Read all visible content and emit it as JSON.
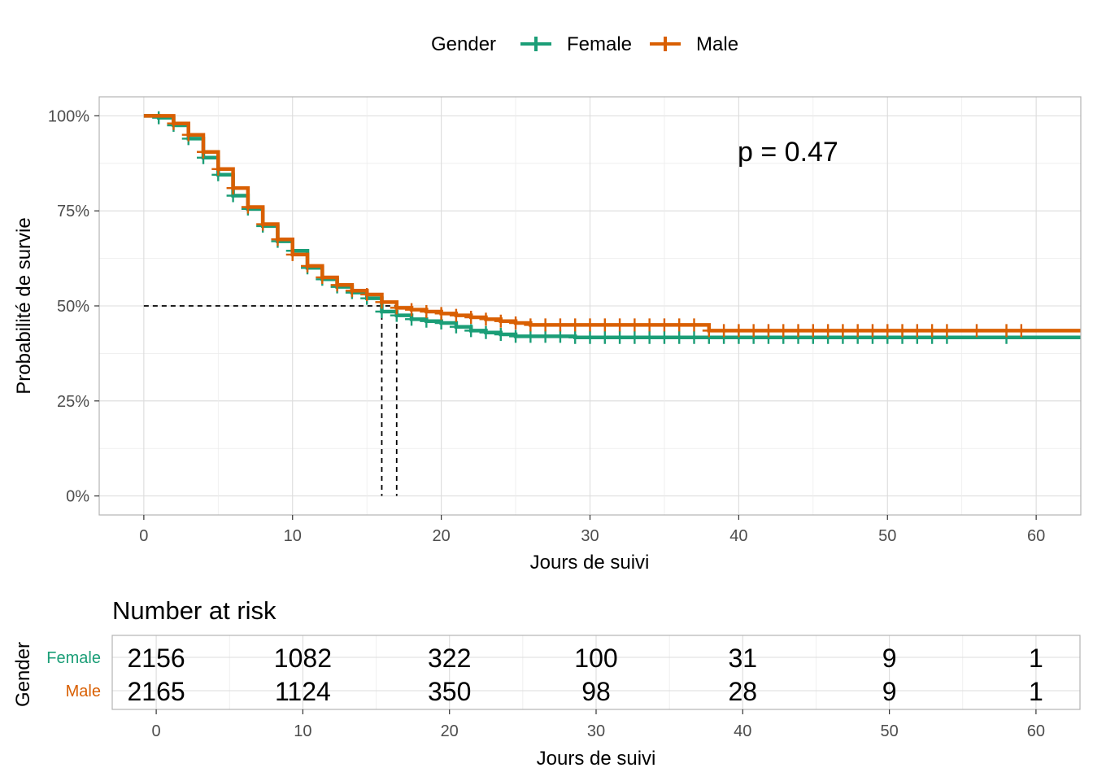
{
  "chart_data": [
    {
      "type": "line",
      "subtype": "kaplan-meier",
      "title": "",
      "xlabel": "Jours de suivi",
      "ylabel": "Probabilité de survie",
      "xlim": [
        -3,
        63
      ],
      "ylim": [
        -5,
        105
      ],
      "x_ticks": [
        0,
        10,
        20,
        30,
        40,
        50,
        60
      ],
      "x_tick_labels": [
        "0",
        "10",
        "20",
        "30",
        "40",
        "50",
        "60"
      ],
      "y_ticks": [
        0,
        25,
        50,
        75,
        100
      ],
      "y_tick_labels": [
        "0%",
        "25%",
        "50%",
        "75%",
        "100%"
      ],
      "grid": true,
      "legend": {
        "title": "Gender",
        "position": "top",
        "entries": [
          "Female",
          "Male"
        ]
      },
      "annotation": "p = 0.47",
      "median_survival": {
        "level": 50,
        "female_x": 16,
        "male_x": 17
      },
      "series": [
        {
          "name": "Female",
          "color": "#1b9e77",
          "x": [
            0,
            1,
            2,
            3,
            4,
            5,
            6,
            7,
            8,
            9,
            10,
            11,
            12,
            13,
            14,
            15,
            16,
            17,
            18,
            19,
            20,
            21,
            22,
            23,
            24,
            25,
            26,
            29,
            38,
            63
          ],
          "y": [
            100,
            99.5,
            97.5,
            94,
            89,
            84.5,
            79,
            75.5,
            71,
            67,
            64.5,
            60,
            57,
            55,
            53.5,
            52,
            48.5,
            47.5,
            46.5,
            46,
            45.5,
            44.5,
            43.5,
            43,
            42.5,
            42,
            42,
            41.7,
            41.7,
            41.7
          ],
          "censor_x": [
            1,
            2,
            3,
            4,
            5,
            6,
            7,
            8,
            9,
            10,
            11,
            12,
            13,
            14,
            15,
            16,
            17,
            18,
            19,
            20,
            21,
            22,
            23,
            24,
            25,
            26,
            27,
            28,
            29,
            30,
            31,
            32,
            33,
            34,
            35,
            36,
            37,
            38,
            39,
            40,
            41,
            42,
            43,
            44,
            45,
            46,
            47,
            48,
            49,
            50,
            51,
            52,
            53,
            54,
            58
          ]
        },
        {
          "name": "Male",
          "color": "#d95f02",
          "x": [
            0,
            1,
            2,
            3,
            4,
            5,
            6,
            7,
            8,
            9,
            10,
            11,
            12,
            13,
            14,
            15,
            16,
            17,
            18,
            19,
            20,
            21,
            22,
            23,
            24,
            25,
            26,
            38,
            63
          ],
          "y": [
            100,
            100,
            98,
            95,
            90.5,
            86,
            81,
            76,
            71.5,
            67.5,
            63.5,
            60.5,
            57.5,
            55.5,
            54,
            53,
            51,
            49.5,
            49,
            48.5,
            48,
            47.5,
            47,
            46.5,
            46,
            45.5,
            45,
            43.5,
            43.5
          ],
          "censor_x": [
            2,
            3,
            4,
            5,
            6,
            7,
            8,
            9,
            10,
            11,
            12,
            13,
            14,
            15,
            16,
            17,
            18,
            19,
            20,
            21,
            22,
            23,
            24,
            25,
            26,
            27,
            28,
            29,
            30,
            31,
            32,
            33,
            34,
            35,
            36,
            37,
            38,
            39,
            40,
            41,
            42,
            43,
            44,
            45,
            46,
            47,
            48,
            49,
            50,
            51,
            52,
            53,
            54,
            56,
            58,
            59
          ]
        }
      ]
    },
    {
      "type": "table",
      "title": "Number at risk",
      "xlabel": "Jours de suivi",
      "ylabel": "Gender",
      "xlim": [
        -3,
        63
      ],
      "x_ticks": [
        0,
        10,
        20,
        30,
        40,
        50,
        60
      ],
      "x_tick_labels": [
        "0",
        "10",
        "20",
        "30",
        "40",
        "50",
        "60"
      ],
      "grid": true,
      "rows": [
        {
          "label": "Female",
          "color": "#1b9e77",
          "values": [
            2156,
            1082,
            322,
            100,
            31,
            9,
            1
          ]
        },
        {
          "label": "Male",
          "color": "#d95f02",
          "values": [
            2165,
            1124,
            350,
            98,
            28,
            9,
            1
          ]
        }
      ]
    }
  ]
}
